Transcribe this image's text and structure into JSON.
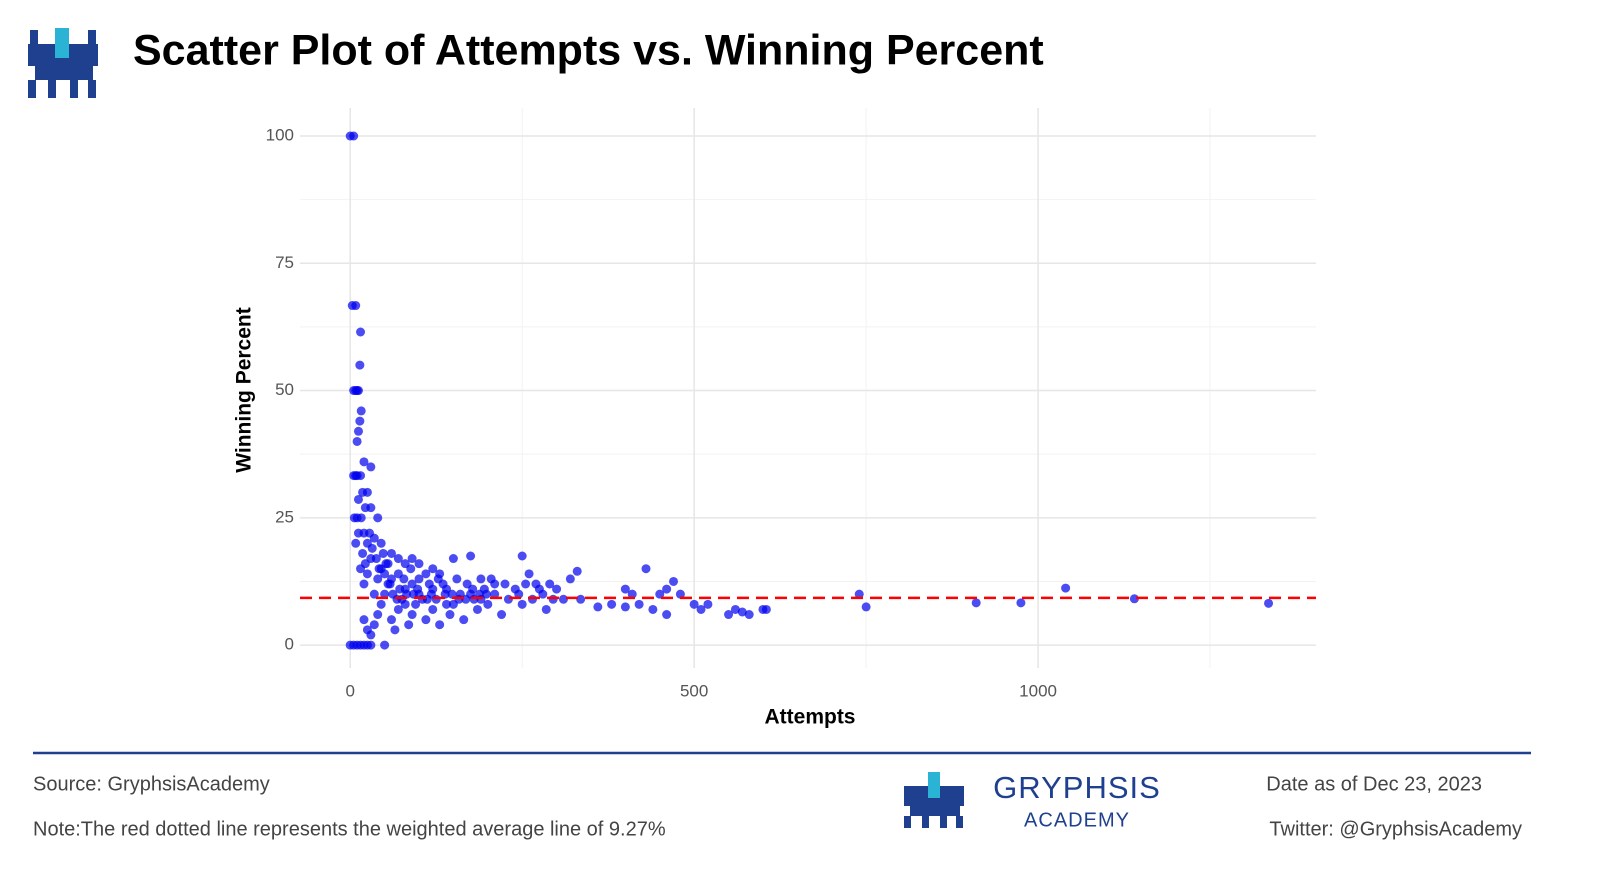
{
  "chart_data": {
    "type": "scatter",
    "title": "Scatter Plot of Attempts vs. Winning Percent",
    "x_label": "Attempts",
    "y_label": "Winning Percent",
    "x": [
      0,
      5,
      3,
      8,
      15,
      14,
      5,
      8,
      10,
      12,
      16,
      14,
      10,
      12,
      5,
      8,
      10,
      15,
      20,
      30,
      25,
      12,
      18,
      6,
      10,
      16,
      22,
      30,
      40,
      20,
      25,
      35,
      45,
      60,
      70,
      80,
      90,
      100,
      120,
      130,
      150,
      175,
      190,
      210,
      250,
      260,
      270,
      300,
      330,
      320,
      400,
      410,
      430,
      470,
      480,
      460,
      450,
      440,
      460,
      360,
      380,
      400,
      420,
      500,
      510,
      520,
      550,
      560,
      570,
      580,
      600,
      605,
      740,
      750,
      910,
      975,
      1040,
      1140,
      1335,
      0,
      5,
      10,
      15,
      20,
      25,
      30,
      50,
      20,
      25,
      30,
      35,
      40,
      45,
      50,
      55,
      60,
      65,
      70,
      75,
      80,
      85,
      90,
      95,
      100,
      110,
      115,
      120,
      125,
      130,
      140,
      145,
      150,
      160,
      165,
      170,
      180,
      185,
      195,
      200,
      210,
      220,
      230,
      240,
      250,
      255,
      265,
      280,
      285,
      290,
      295,
      310,
      335,
      15,
      20,
      25,
      30,
      35,
      40,
      45,
      50,
      55,
      60,
      70,
      80,
      90,
      100,
      110,
      120,
      135,
      140,
      155,
      175,
      190,
      205,
      225,
      245,
      275,
      8,
      12,
      18,
      22,
      28,
      32,
      38,
      42,
      48,
      52,
      58,
      62,
      68,
      72,
      78,
      82,
      88,
      92,
      98,
      105,
      112,
      118,
      128,
      138,
      148,
      158,
      168,
      178,
      188,
      198
    ],
    "values": [
      100,
      100,
      66.7,
      66.7,
      61.5,
      55,
      50,
      50,
      50,
      50,
      46,
      44,
      40,
      42,
      33.3,
      33.3,
      33.3,
      33.3,
      36,
      35,
      30,
      28.6,
      30,
      25,
      25,
      25,
      27,
      27,
      25,
      22,
      20,
      21,
      20,
      18,
      17,
      16,
      17,
      16,
      15,
      14,
      17,
      17.5,
      13,
      12,
      17.5,
      14,
      12,
      11,
      14.5,
      13,
      11,
      10,
      15,
      12.5,
      10,
      11,
      10,
      7,
      6,
      7.5,
      8,
      7.5,
      8,
      8,
      7,
      8,
      6,
      7,
      6.5,
      6,
      7,
      7,
      10,
      7.5,
      8.3,
      8.3,
      11.2,
      9.1,
      8.2,
      0,
      0,
      0,
      0,
      0,
      0,
      0,
      0,
      5,
      3,
      2,
      4,
      6,
      8,
      10,
      12,
      5,
      3,
      7,
      9,
      11,
      4,
      6,
      8,
      10,
      5,
      12,
      7,
      9,
      4,
      11,
      6,
      8,
      10,
      5,
      12,
      9,
      7,
      11,
      8,
      10,
      6,
      9,
      11,
      8,
      12,
      9,
      10,
      7,
      12,
      9,
      9,
      9,
      15,
      12,
      14,
      17,
      10,
      13,
      15,
      14,
      16,
      13,
      14,
      8,
      12,
      13,
      14,
      11,
      12,
      8,
      13,
      10,
      9,
      13,
      12,
      10,
      11,
      20,
      22,
      18,
      16,
      22,
      19,
      17,
      15,
      18,
      16,
      12,
      10,
      9,
      11,
      13,
      10,
      15,
      10,
      11,
      9,
      9,
      10,
      13,
      10,
      10,
      9,
      9,
      11,
      10,
      10
    ],
    "color": "#0000ee",
    "xlim": [
      -73,
      1404
    ],
    "ylim": [
      -4.5,
      105.5
    ],
    "xticks": [
      0,
      500,
      1000
    ],
    "yticks": [
      0,
      25,
      50,
      75,
      100
    ],
    "x_minor_grid": [
      250,
      750,
      1250
    ],
    "y_minor_grid": [
      12.5,
      37.5,
      62.5,
      87.5
    ],
    "grid": true,
    "hline": {
      "value": 9.27,
      "color": "#ff0000"
    }
  },
  "footer": {
    "source": "Source: GryphsisAcademy",
    "note": "Note:The red dotted line represents the weighted average line of 9.27%",
    "brand": "GRYPHSIS",
    "brand_sub": "ACADEMY",
    "date": "Date as of Dec 23, 2023",
    "twitter": "Twitter: @GryphsisAcademy"
  }
}
